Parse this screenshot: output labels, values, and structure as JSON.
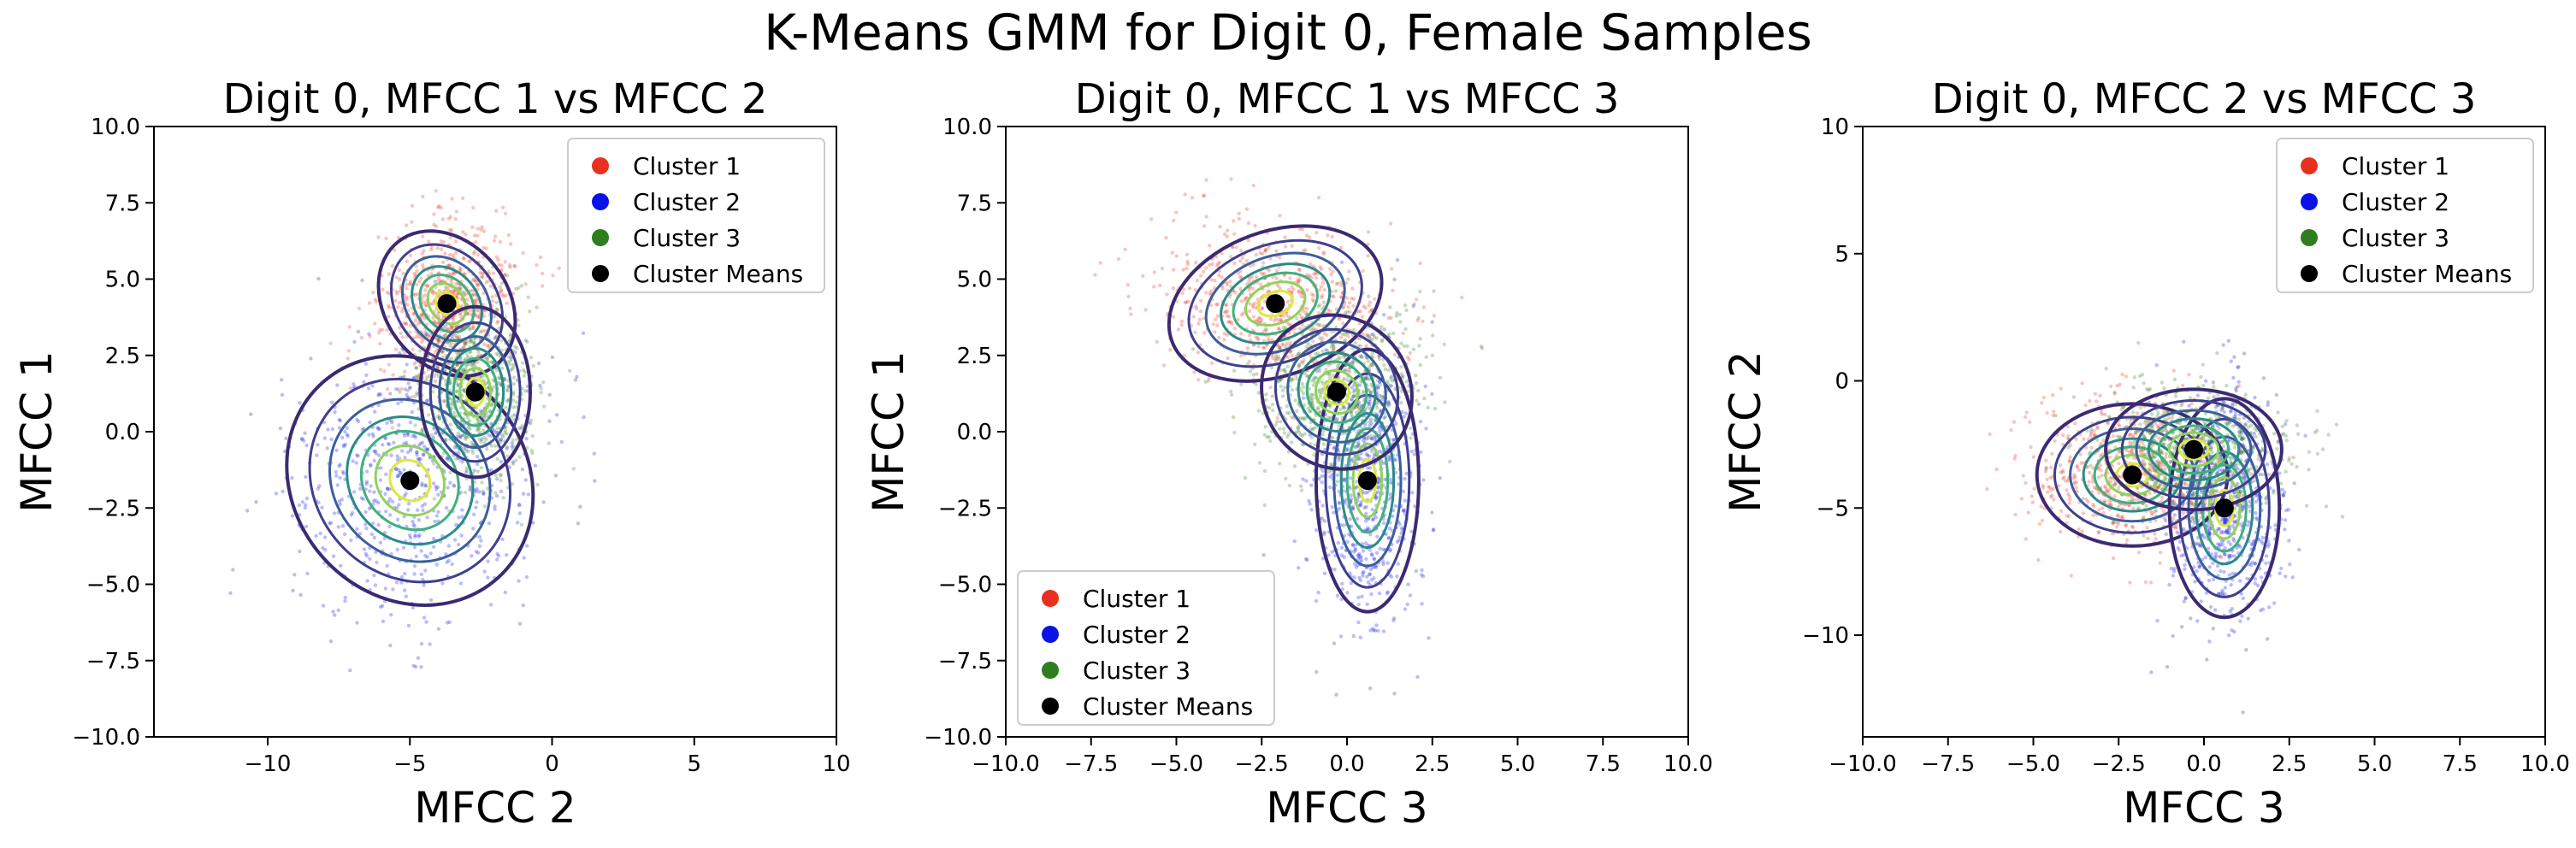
{
  "suptitle": "K-Means GMM for Digit 0, Female Samples",
  "colors": {
    "cluster1": "#e8301f",
    "cluster2": "#0a12e8",
    "cluster3": "#2e7d1e",
    "means": "#000000"
  },
  "chart_data": [
    {
      "type": "scatter",
      "title": "Digit 0, MFCC 1 vs MFCC 2",
      "xlabel": "MFCC 2",
      "ylabel": "MFCC 1",
      "xlim": [
        -14,
        10
      ],
      "ylim": [
        -10,
        10
      ],
      "xticks": [
        -10,
        -5,
        0,
        5,
        10
      ],
      "yticks": [
        -10.0,
        -7.5,
        -5.0,
        -2.5,
        0.0,
        2.5,
        5.0,
        7.5,
        10.0
      ],
      "xtick_labels": [
        "−10",
        "−5",
        "0",
        "5",
        "10"
      ],
      "ytick_labels": [
        "−10.0",
        "−7.5",
        "−5.0",
        "−2.5",
        "0.0",
        "2.5",
        "5.0",
        "7.5",
        "10.0"
      ],
      "legend": {
        "placement": "top-right",
        "entries": [
          "Cluster 1",
          "Cluster 2",
          "Cluster 3",
          "Cluster Means"
        ]
      },
      "clusters": [
        {
          "name": "Cluster 1",
          "mean": [
            -3.7,
            4.2
          ],
          "sx": 1.0,
          "sy": 1.2,
          "angle": -38
        },
        {
          "name": "Cluster 2",
          "mean": [
            -5.0,
            -1.6
          ],
          "sx": 1.9,
          "sy": 2.0,
          "angle": -42
        },
        {
          "name": "Cluster 3",
          "mean": [
            -2.7,
            1.3
          ],
          "sx": 0.9,
          "sy": 1.3,
          "angle": 0
        }
      ]
    },
    {
      "type": "scatter",
      "title": "Digit 0, MFCC 1 vs MFCC 3",
      "xlabel": "MFCC 3",
      "ylabel": "MFCC 1",
      "xlim": [
        -10,
        10
      ],
      "ylim": [
        -10,
        10
      ],
      "xticks": [
        -10.0,
        -7.5,
        -5.0,
        -2.5,
        0.0,
        2.5,
        5.0,
        7.5,
        10.0
      ],
      "yticks": [
        -10.0,
        -7.5,
        -5.0,
        -2.5,
        0.0,
        2.5,
        5.0,
        7.5,
        10.0
      ],
      "xtick_labels": [
        "−10.0",
        "−7.5",
        "−5.0",
        "−2.5",
        "0.0",
        "2.5",
        "5.0",
        "7.5",
        "10.0"
      ],
      "ytick_labels": [
        "−10.0",
        "−7.5",
        "−5.0",
        "−2.5",
        "0.0",
        "2.5",
        "5.0",
        "7.5",
        "10.0"
      ],
      "legend": {
        "placement": "bottom-left",
        "entries": [
          "Cluster 1",
          "Cluster 2",
          "Cluster 3",
          "Cluster Means"
        ]
      },
      "clusters": [
        {
          "name": "Cluster 1",
          "mean": [
            -2.1,
            4.2
          ],
          "sx": 1.5,
          "sy": 1.1,
          "angle": -20
        },
        {
          "name": "Cluster 2",
          "mean": [
            0.6,
            -1.6
          ],
          "sx": 0.7,
          "sy": 2.0,
          "angle": 0
        },
        {
          "name": "Cluster 3",
          "mean": [
            -0.3,
            1.3
          ],
          "sx": 1.0,
          "sy": 1.2,
          "angle": -35
        }
      ]
    },
    {
      "type": "scatter",
      "title": "Digit 0, MFCC 2 vs MFCC 3",
      "xlabel": "MFCC 3",
      "ylabel": "MFCC 2",
      "xlim": [
        -10,
        10
      ],
      "ylim": [
        -14,
        10
      ],
      "xticks": [
        -10.0,
        -7.5,
        -5.0,
        -2.5,
        0.0,
        2.5,
        5.0,
        7.5,
        10.0
      ],
      "yticks": [
        -10,
        -5,
        0,
        5,
        10
      ],
      "xtick_labels": [
        "−10.0",
        "−7.5",
        "−5.0",
        "−2.5",
        "0.0",
        "2.5",
        "5.0",
        "7.5",
        "10.0"
      ],
      "ytick_labels": [
        "−10",
        "−5",
        "0",
        "5",
        "10"
      ],
      "legend": {
        "placement": "top-right",
        "entries": [
          "Cluster 1",
          "Cluster 2",
          "Cluster 3",
          "Cluster Means"
        ]
      },
      "clusters": [
        {
          "name": "Cluster 1",
          "mean": [
            -2.1,
            -3.7
          ],
          "sx": 1.3,
          "sy": 1.3,
          "angle": 0
        },
        {
          "name": "Cluster 2",
          "mean": [
            0.6,
            -5.0
          ],
          "sx": 0.75,
          "sy": 2.0,
          "angle": 0
        },
        {
          "name": "Cluster 3",
          "mean": [
            -0.3,
            -2.7
          ],
          "sx": 1.2,
          "sy": 1.1,
          "angle": 0
        }
      ]
    }
  ]
}
